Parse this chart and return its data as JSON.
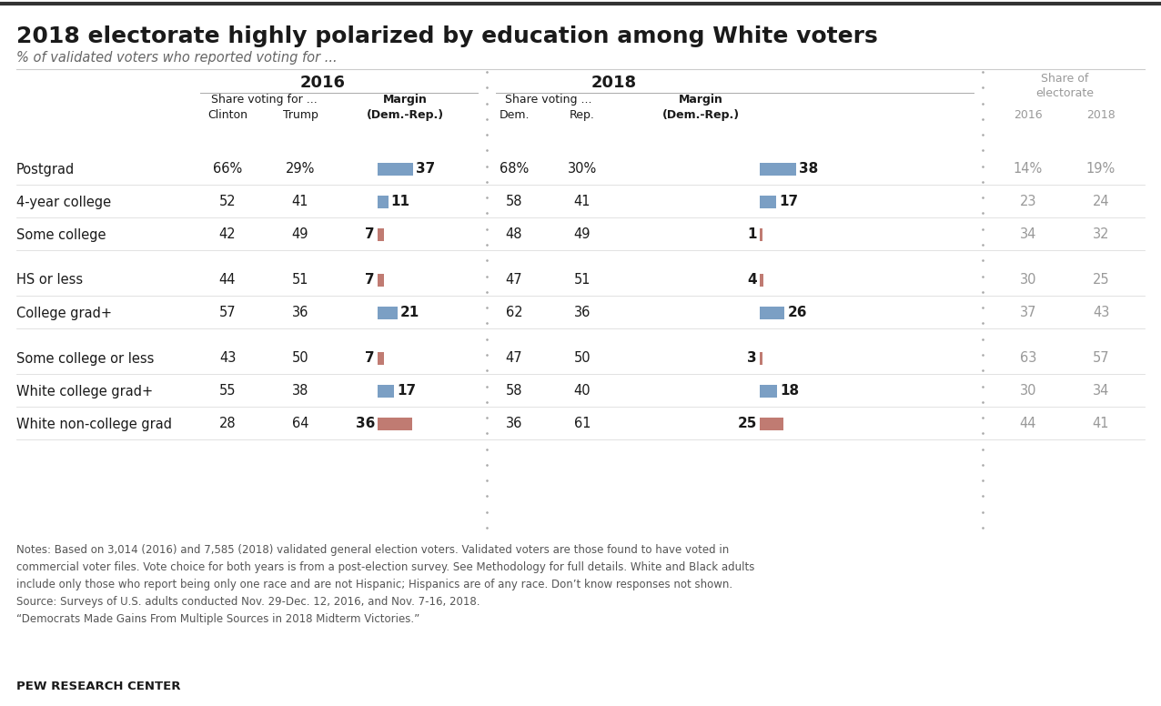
{
  "title": "2018 electorate highly polarized by education among White voters",
  "subtitle": "% of validated voters who reported voting for ...",
  "rows": [
    {
      "label": "Postgrad",
      "c16": "66%",
      "t16": "29%",
      "m16": 37,
      "m16_dir": "dem",
      "d18": "68%",
      "r18": "30%",
      "m18": 38,
      "m18_dir": "dem",
      "s16": "14%",
      "s18": "19%"
    },
    {
      "label": "4-year college",
      "c16": "52",
      "t16": "41",
      "m16": 11,
      "m16_dir": "dem",
      "d18": "58",
      "r18": "41",
      "m18": 17,
      "m18_dir": "dem",
      "s16": "23",
      "s18": "24"
    },
    {
      "label": "Some college",
      "c16": "42",
      "t16": "49",
      "m16": 7,
      "m16_dir": "rep",
      "d18": "48",
      "r18": "49",
      "m18": 1,
      "m18_dir": "rep",
      "s16": "34",
      "s18": "32"
    },
    {
      "label": "HS or less",
      "c16": "44",
      "t16": "51",
      "m16": 7,
      "m16_dir": "rep",
      "d18": "47",
      "r18": "51",
      "m18": 4,
      "m18_dir": "rep",
      "s16": "30",
      "s18": "25"
    },
    {
      "label": "College grad+",
      "c16": "57",
      "t16": "36",
      "m16": 21,
      "m16_dir": "dem",
      "d18": "62",
      "r18": "36",
      "m18": 26,
      "m18_dir": "dem",
      "s16": "37",
      "s18": "43"
    },
    {
      "label": "Some college or less",
      "c16": "43",
      "t16": "50",
      "m16": 7,
      "m16_dir": "rep",
      "d18": "47",
      "r18": "50",
      "m18": 3,
      "m18_dir": "rep",
      "s16": "63",
      "s18": "57"
    },
    {
      "label": "White college grad+",
      "c16": "55",
      "t16": "38",
      "m16": 17,
      "m16_dir": "dem",
      "d18": "58",
      "r18": "40",
      "m18": 18,
      "m18_dir": "dem",
      "s16": "30",
      "s18": "34"
    },
    {
      "label": "White non-college grad",
      "c16": "28",
      "t16": "64",
      "m16": 36,
      "m16_dir": "rep",
      "d18": "36",
      "r18": "61",
      "m18": 25,
      "m18_dir": "rep",
      "s16": "44",
      "s18": "41"
    }
  ],
  "group_breaks_after": [
    3,
    5
  ],
  "dem_color": "#7b9fc4",
  "rep_color": "#c07b72",
  "text_color_dark": "#1a1a1a",
  "text_color_light": "#999999",
  "notes": [
    "Notes: Based on 3,014 (2016) and 7,585 (2018) validated general election voters. Validated voters are those found to have voted in",
    "commercial voter files. Vote choice for both years is from a post-election survey. See Methodology for full details. White and Black adults",
    "include only those who report being only one race and are not Hispanic; Hispanics are of any race. Don’t know responses not shown.",
    "Source: Surveys of U.S. adults conducted Nov. 29-Dec. 12, 2016, and Nov. 7-16, 2018.",
    "“Democrats Made Gains From Multiple Sources in 2018 Midterm Victories.”"
  ],
  "footer": "PEW RESEARCH CENTER"
}
